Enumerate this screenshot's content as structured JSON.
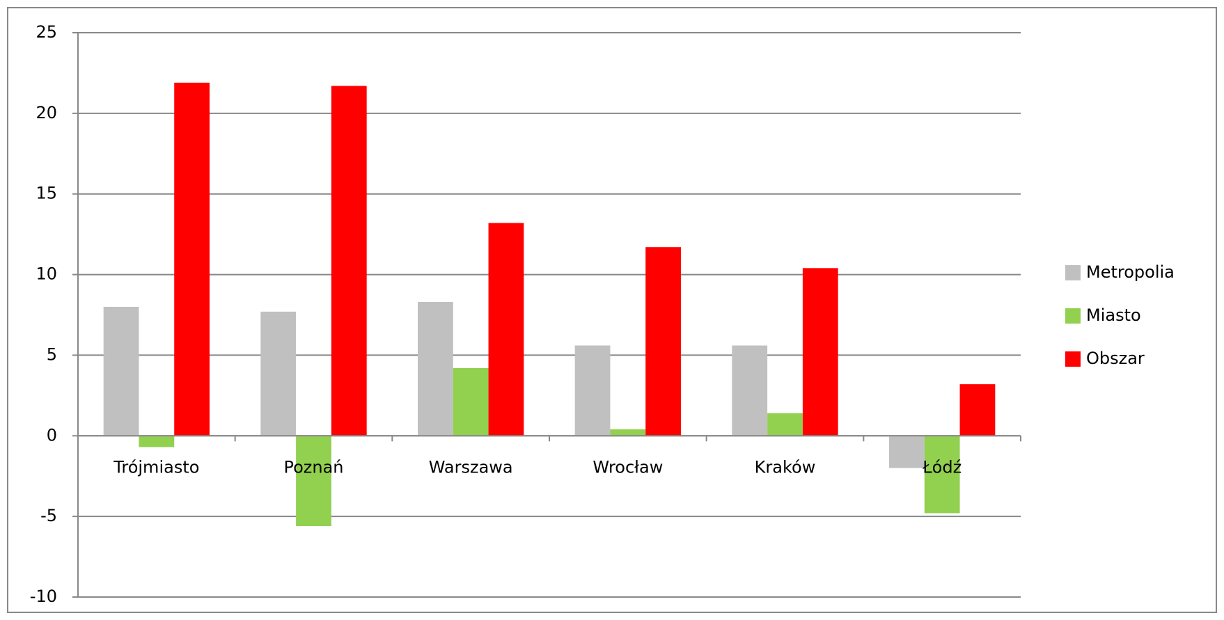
{
  "chart_data": {
    "type": "bar",
    "categories": [
      "Trójmiasto",
      "Poznań",
      "Warszawa",
      "Wrocław",
      "Kraków",
      "Łódź"
    ],
    "series": [
      {
        "name": "Metropolia",
        "color": "#c0c0c0",
        "values": [
          8.0,
          7.7,
          8.3,
          5.6,
          5.6,
          -2.0
        ]
      },
      {
        "name": "Miasto",
        "color": "#92d050",
        "values": [
          -0.7,
          -5.6,
          4.2,
          0.4,
          1.4,
          -4.8
        ]
      },
      {
        "name": "Obszar",
        "color": "#ff0000",
        "values": [
          21.9,
          21.7,
          13.2,
          11.7,
          10.4,
          3.2
        ]
      }
    ],
    "ylim": [
      -10,
      25
    ],
    "yticks": [
      -10,
      -5,
      0,
      5,
      10,
      15,
      20,
      25
    ],
    "grid": true,
    "legend": "right"
  }
}
